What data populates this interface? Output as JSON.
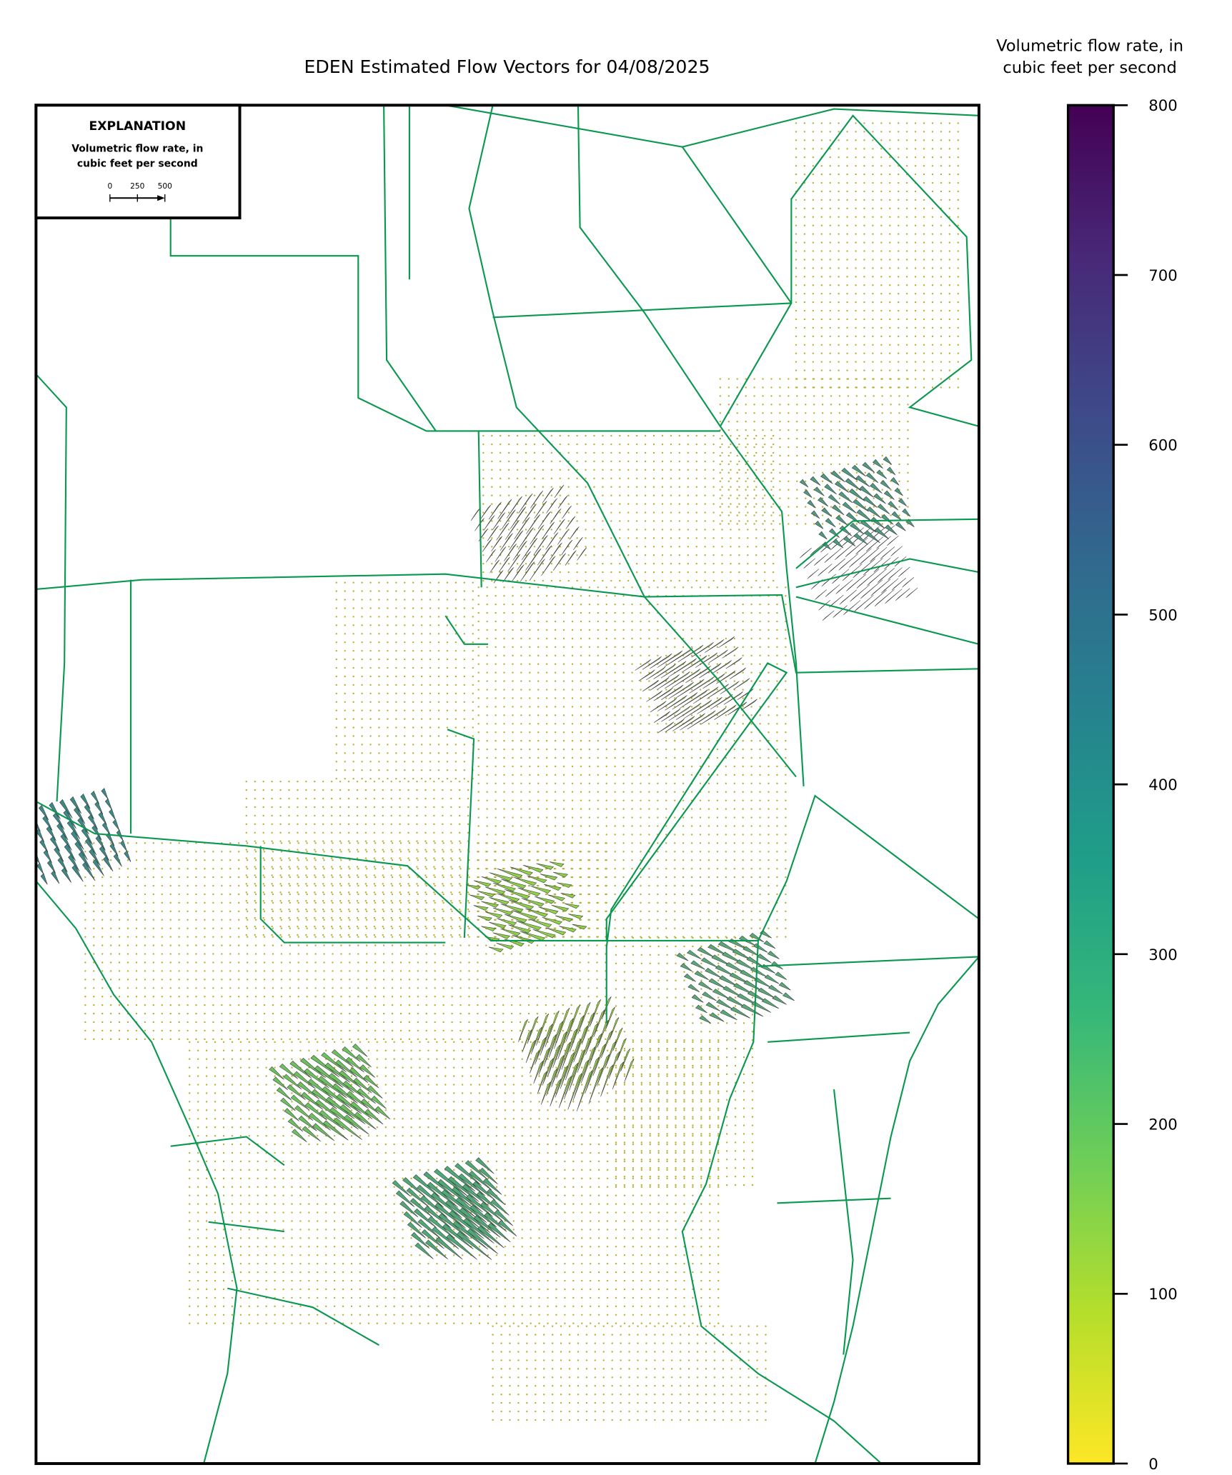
{
  "header": {
    "title": "EDEN Estimated Flow Vectors for 04/08/2025"
  },
  "legend": {
    "title": "EXPLANATION",
    "subtitle_lines": [
      "Volumetric flow rate, in",
      "cubic feet per second"
    ],
    "scale_ticks": [
      0,
      250,
      500
    ]
  },
  "colorbar": {
    "label_lines": [
      "Volumetric flow rate, in",
      "cubic feet per second"
    ],
    "lim": [
      0,
      800
    ],
    "ticks": [
      0,
      100,
      200,
      300,
      400,
      500,
      600,
      700,
      800
    ],
    "colormap": "viridis_r"
  }
}
